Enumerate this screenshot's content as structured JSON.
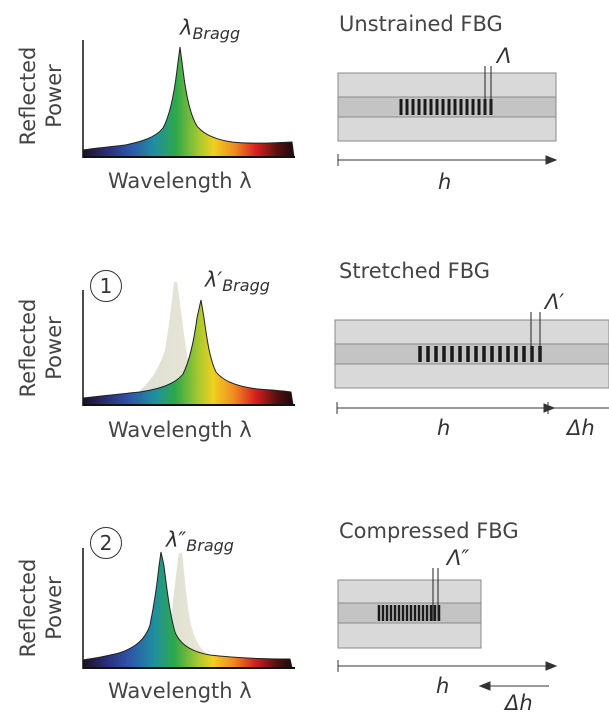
{
  "panels": [
    {
      "ylabel_line1": "Reflected",
      "ylabel_line2": "Power",
      "xlabel": "Wavelength λ",
      "peak_symbol": "λ",
      "peak_sub": "Bragg",
      "title": "Unstrained FBG",
      "period": "Λ",
      "length": "h"
    },
    {
      "step": "1",
      "ylabel_line1": "Reflected",
      "ylabel_line2": "Power",
      "xlabel": "Wavelength λ",
      "peak_symbol": "λ′",
      "peak_sub": "Bragg",
      "title": "Stretched FBG",
      "period": "Λ′",
      "length": "h",
      "delta": "Δh"
    },
    {
      "step": "2",
      "ylabel_line1": "Reflected",
      "ylabel_line2": "Power",
      "xlabel": "Wavelength λ",
      "peak_symbol": "λ″",
      "peak_sub": "Bragg",
      "title": "Compressed FBG",
      "period": "Λ″",
      "length": "h",
      "delta": "Δh"
    }
  ],
  "colors": {
    "fiber_outer": "#d9d9d9",
    "fiber_core": "#c4c4c4",
    "grating": "#1a1a1a"
  }
}
